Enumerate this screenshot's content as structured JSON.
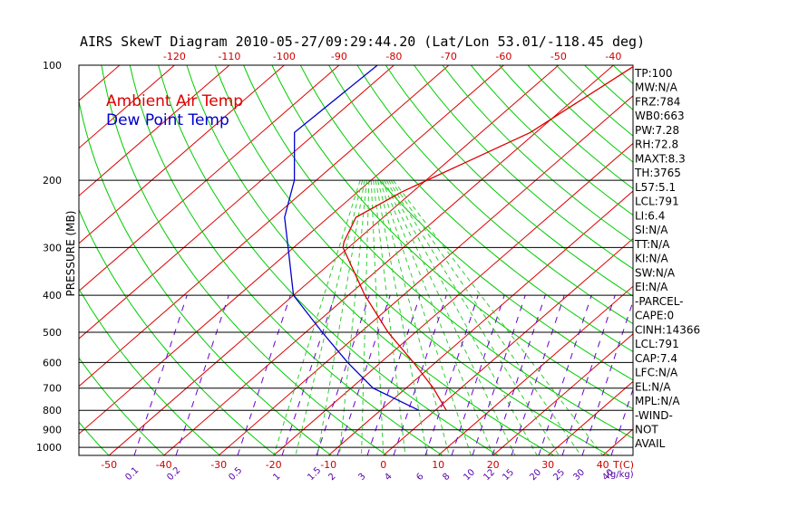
{
  "chart_data": {
    "type": "line",
    "title": "AIRS SkewT Diagram 2010-05-27/09:29:44.20 (Lat/Lon 53.01/-118.45 deg)",
    "ylabel": "PRESSURE (MB)",
    "y_scale": "log",
    "ylim": [
      1050,
      100
    ],
    "pressure_ticks": [
      100,
      200,
      300,
      400,
      500,
      600,
      700,
      800,
      900,
      1000
    ],
    "top_temperature_ticks": [
      "-120",
      "-110",
      "-100",
      "-90",
      "-80",
      "-70",
      "-60",
      "-50",
      "-40"
    ],
    "bottom_temperature_ticks": [
      "-50",
      "-40",
      "-30",
      "-20",
      "-10",
      "0",
      "10",
      "20",
      "30",
      "40"
    ],
    "bottom_axis_unit": "T(C)",
    "mixing_ratio_ticks": [
      "0.1",
      "0.2",
      "0.5",
      "1",
      "1.5",
      "2",
      "3",
      "4",
      "6",
      "8",
      "10",
      "12",
      "15",
      "20",
      "25",
      "30",
      "40"
    ],
    "mixing_ratio_unit": "(g/kg)",
    "legend": [
      {
        "label": "Ambient Air Temp",
        "color": "#dd0000"
      },
      {
        "label": "Dew Point Temp",
        "color": "#0000cc"
      }
    ],
    "series": [
      {
        "name": "Ambient Air Temp",
        "color": "#dd0000",
        "points": [
          {
            "p": 100,
            "t": -36
          },
          {
            "p": 150,
            "t": -41
          },
          {
            "p": 195,
            "t": -49
          },
          {
            "p": 215,
            "t": -52
          },
          {
            "p": 250,
            "t": -55
          },
          {
            "p": 290,
            "t": -52
          },
          {
            "p": 300,
            "t": -51
          },
          {
            "p": 400,
            "t": -37
          },
          {
            "p": 500,
            "t": -25
          },
          {
            "p": 600,
            "t": -14
          },
          {
            "p": 700,
            "t": -5
          },
          {
            "p": 800,
            "t": 2
          }
        ]
      },
      {
        "name": "Dew Point Temp",
        "color": "#0000cc",
        "points": [
          {
            "p": 100,
            "t": -83
          },
          {
            "p": 150,
            "t": -84
          },
          {
            "p": 200,
            "t": -74
          },
          {
            "p": 250,
            "t": -68
          },
          {
            "p": 300,
            "t": -61
          },
          {
            "p": 400,
            "t": -50
          },
          {
            "p": 500,
            "t": -37
          },
          {
            "p": 600,
            "t": -26
          },
          {
            "p": 700,
            "t": -16
          },
          {
            "p": 800,
            "t": -3
          }
        ]
      }
    ],
    "stats": [
      "TP:100",
      "MW:N/A",
      "FRZ:784",
      "WB0:663",
      "PW:7.28",
      "RH:72.8",
      "MAXT:8.3",
      "TH:3765",
      "L57:5.1",
      "LCL:791",
      "LI:6.4",
      "SI:N/A",
      "TT:N/A",
      "KI:N/A",
      "SW:N/A",
      "EI:N/A",
      "-PARCEL-",
      "CAPE:0",
      "CINH:14366",
      "LCL:791",
      "CAP:7.4",
      "LFC:N/A",
      "EL:N/A",
      "MPL:N/A",
      "-WIND-",
      "NOT",
      "AVAIL"
    ],
    "colors": {
      "isotherm": "#dd0000",
      "dry_adiabat": "#00cc00",
      "moist_adiabat": "#33cc33",
      "mixing_ratio": "#6600cc",
      "isobar": "#000000"
    }
  }
}
